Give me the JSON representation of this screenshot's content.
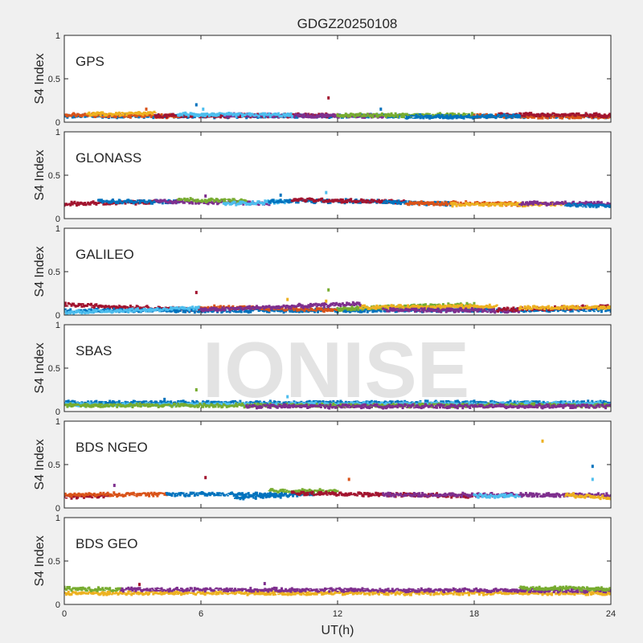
{
  "chart_data": {
    "type": "scatter",
    "title": "GDGZ20250108",
    "xlabel": "UT(h)",
    "ylabel": "S4 Index",
    "xlim": [
      0,
      24
    ],
    "ylim": [
      0,
      1
    ],
    "xticks": [
      0,
      6,
      12,
      18,
      24
    ],
    "yticks": [
      0,
      0.5,
      1
    ],
    "watermark": "IONISE",
    "colors": [
      "#0072bd",
      "#d95319",
      "#edb120",
      "#7e2f8e",
      "#77ac30",
      "#4dbeee",
      "#a2142f"
    ],
    "panels": [
      {
        "label": "GPS",
        "segments": [
          {
            "color_index": 0,
            "x": [
              0,
              24
            ],
            "y": [
              0.07,
              0.07
            ]
          },
          {
            "color_index": 1,
            "x": [
              0,
              5
            ],
            "y": [
              0.08,
              0.07
            ]
          },
          {
            "color_index": 2,
            "x": [
              1,
              4
            ],
            "y": [
              0.09,
              0.1
            ]
          },
          {
            "color_index": 6,
            "x": [
              4,
              12
            ],
            "y": [
              0.07,
              0.08
            ]
          },
          {
            "color_index": 3,
            "x": [
              7,
              14
            ],
            "y": [
              0.08,
              0.07
            ]
          },
          {
            "color_index": 4,
            "x": [
              12,
              18
            ],
            "y": [
              0.08,
              0.08
            ]
          },
          {
            "color_index": 5,
            "x": [
              5,
              10
            ],
            "y": [
              0.09,
              0.08
            ]
          },
          {
            "color_index": 1,
            "x": [
              18,
              24
            ],
            "y": [
              0.07,
              0.06
            ]
          },
          {
            "color_index": 6,
            "x": [
              19,
              24
            ],
            "y": [
              0.09,
              0.08
            ]
          },
          {
            "color_index": 0,
            "x": [
              15,
              20
            ],
            "y": [
              0.06,
              0.07
            ]
          }
        ],
        "spikes": [
          [
            5.8,
            0.2,
            0
          ],
          [
            6.1,
            0.15,
            5
          ],
          [
            11.6,
            0.28,
            6
          ],
          [
            13.9,
            0.15,
            0
          ],
          [
            3.6,
            0.15,
            1
          ]
        ]
      },
      {
        "label": "GLONASS",
        "segments": [
          {
            "color_index": 6,
            "x": [
              0,
              4
            ],
            "y": [
              0.17,
              0.19
            ]
          },
          {
            "color_index": 0,
            "x": [
              1.5,
              5
            ],
            "y": [
              0.2,
              0.19
            ]
          },
          {
            "color_index": 3,
            "x": [
              4,
              9
            ],
            "y": [
              0.2,
              0.18
            ]
          },
          {
            "color_index": 4,
            "x": [
              5,
              8
            ],
            "y": [
              0.22,
              0.2
            ]
          },
          {
            "color_index": 5,
            "x": [
              7,
              10
            ],
            "y": [
              0.17,
              0.2
            ]
          },
          {
            "color_index": 0,
            "x": [
              9,
              14
            ],
            "y": [
              0.2,
              0.2
            ]
          },
          {
            "color_index": 6,
            "x": [
              10,
              15
            ],
            "y": [
              0.22,
              0.19
            ]
          },
          {
            "color_index": 0,
            "x": [
              14,
              17
            ],
            "y": [
              0.19,
              0.17
            ]
          },
          {
            "color_index": 1,
            "x": [
              15,
              20
            ],
            "y": [
              0.18,
              0.17
            ]
          },
          {
            "color_index": 2,
            "x": [
              17,
              22
            ],
            "y": [
              0.16,
              0.17
            ]
          },
          {
            "color_index": 3,
            "x": [
              20,
              24
            ],
            "y": [
              0.18,
              0.17
            ]
          },
          {
            "color_index": 0,
            "x": [
              22,
              24
            ],
            "y": [
              0.16,
              0.14
            ]
          }
        ],
        "spikes": [
          [
            11.5,
            0.3,
            5
          ],
          [
            9.5,
            0.27,
            0
          ],
          [
            6.2,
            0.26,
            3
          ]
        ]
      },
      {
        "label": "GALILEO",
        "segments": [
          {
            "color_index": 6,
            "x": [
              0,
              6
            ],
            "y": [
              0.12,
              0.06
            ]
          },
          {
            "color_index": 0,
            "x": [
              0,
              24
            ],
            "y": [
              0.05,
              0.06
            ]
          },
          {
            "color_index": 5,
            "x": [
              0,
              6
            ],
            "y": [
              0.03,
              0.08
            ]
          },
          {
            "color_index": 1,
            "x": [
              6,
              12
            ],
            "y": [
              0.09,
              0.06
            ]
          },
          {
            "color_index": 3,
            "x": [
              6,
              13
            ],
            "y": [
              0.06,
              0.13
            ]
          },
          {
            "color_index": 4,
            "x": [
              12,
              18
            ],
            "y": [
              0.07,
              0.12
            ]
          },
          {
            "color_index": 2,
            "x": [
              13,
              19
            ],
            "y": [
              0.09,
              0.1
            ]
          },
          {
            "color_index": 3,
            "x": [
              14,
              20
            ],
            "y": [
              0.06,
              0.05
            ]
          },
          {
            "color_index": 6,
            "x": [
              19,
              24
            ],
            "y": [
              0.06,
              0.1
            ]
          },
          {
            "color_index": 2,
            "x": [
              20,
              24
            ],
            "y": [
              0.08,
              0.09
            ]
          }
        ],
        "spikes": [
          [
            5.8,
            0.26,
            6
          ],
          [
            11.6,
            0.29,
            4
          ],
          [
            9.8,
            0.18,
            2
          ],
          [
            11.5,
            0.16,
            2
          ]
        ]
      },
      {
        "label": "SBAS",
        "segments": [
          {
            "color_index": 0,
            "x": [
              0,
              24
            ],
            "y": [
              0.1,
              0.1
            ]
          },
          {
            "color_index": 5,
            "x": [
              0,
              24
            ],
            "y": [
              0.08,
              0.09
            ]
          },
          {
            "color_index": 4,
            "x": [
              0,
              24
            ],
            "y": [
              0.07,
              0.07
            ]
          },
          {
            "color_index": 3,
            "x": [
              8,
              24
            ],
            "y": [
              0.06,
              0.06
            ]
          }
        ],
        "spikes": [
          [
            5.8,
            0.25,
            4
          ],
          [
            9.8,
            0.17,
            5
          ],
          [
            4.4,
            0.14,
            0
          ]
        ]
      },
      {
        "label": "BDS NGEO",
        "segments": [
          {
            "color_index": 6,
            "x": [
              0,
              2
            ],
            "y": [
              0.13,
              0.14
            ]
          },
          {
            "color_index": 1,
            "x": [
              0,
              4.5
            ],
            "y": [
              0.15,
              0.16
            ]
          },
          {
            "color_index": 0,
            "x": [
              4.5,
              11
            ],
            "y": [
              0.16,
              0.15
            ]
          },
          {
            "color_index": 4,
            "x": [
              9,
              12
            ],
            "y": [
              0.2,
              0.19
            ]
          },
          {
            "color_index": 6,
            "x": [
              10,
              18
            ],
            "y": [
              0.17,
              0.14
            ]
          },
          {
            "color_index": 3,
            "x": [
              14,
              24
            ],
            "y": [
              0.15,
              0.15
            ]
          },
          {
            "color_index": 5,
            "x": [
              18,
              20
            ],
            "y": [
              0.14,
              0.14
            ]
          },
          {
            "color_index": 2,
            "x": [
              22,
              24
            ],
            "y": [
              0.15,
              0.12
            ]
          },
          {
            "color_index": 0,
            "x": [
              7.5,
              9.5
            ],
            "y": [
              0.12,
              0.14
            ]
          }
        ],
        "spikes": [
          [
            21,
            0.77,
            2
          ],
          [
            23.2,
            0.48,
            0
          ],
          [
            23.2,
            0.33,
            5
          ],
          [
            6.2,
            0.35,
            6
          ],
          [
            12.5,
            0.33,
            1
          ],
          [
            2.2,
            0.26,
            3
          ]
        ]
      },
      {
        "label": "BDS GEO",
        "segments": [
          {
            "color_index": 2,
            "x": [
              0,
              24
            ],
            "y": [
              0.13,
              0.13
            ]
          },
          {
            "color_index": 4,
            "x": [
              0,
              2.5
            ],
            "y": [
              0.18,
              0.17
            ]
          },
          {
            "color_index": 3,
            "x": [
              2.5,
              24
            ],
            "y": [
              0.17,
              0.16
            ]
          },
          {
            "color_index": 4,
            "x": [
              20,
              24
            ],
            "y": [
              0.19,
              0.18
            ]
          }
        ],
        "spikes": [
          [
            8.8,
            0.24,
            3
          ],
          [
            3.3,
            0.23,
            6
          ]
        ]
      }
    ]
  }
}
